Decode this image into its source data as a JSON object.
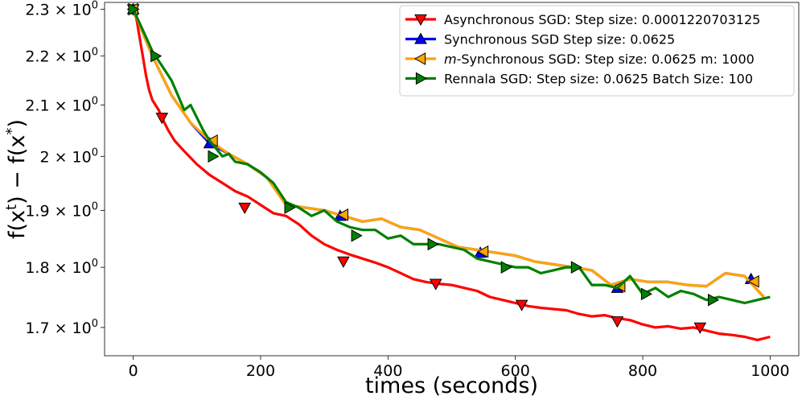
{
  "chart_data": {
    "type": "line",
    "title": "",
    "xlabel": "times (seconds)",
    "ylabel": "f(x^t) − f(x^*)",
    "yscale": "log",
    "xlim": [
      -45,
      1045
    ],
    "ylim": [
      1.655,
      2.315
    ],
    "x_ticks": [
      0,
      200,
      400,
      600,
      800,
      1000
    ],
    "y_ticks": [
      {
        "value": 1.7,
        "mantissa": "1.7"
      },
      {
        "value": 1.8,
        "mantissa": "1.8"
      },
      {
        "value": 1.9,
        "mantissa": "1.9"
      },
      {
        "value": 2.0,
        "mantissa": "2"
      },
      {
        "value": 2.1,
        "mantissa": "2.1"
      },
      {
        "value": 2.2,
        "mantissa": "2.2"
      },
      {
        "value": 2.3,
        "mantissa": "2.3"
      }
    ],
    "tick_base": "10",
    "tick_exponent": "0",
    "legend_position": "top-right",
    "series": [
      {
        "name": "Asynchronous SGD: Step size: 0.0001220703125",
        "label_parts": [
          {
            "text": "Asynchronous SGD: Step size: 0.0001220703125",
            "italic": false
          }
        ],
        "color": "#ff0000",
        "marker": "triangle-down",
        "x": [
          0,
          5,
          10,
          15,
          20,
          25,
          30,
          35,
          40,
          45,
          55,
          65,
          80,
          100,
          120,
          140,
          160,
          180,
          200,
          220,
          240,
          260,
          280,
          300,
          320,
          340,
          360,
          380,
          400,
          420,
          440,
          460,
          480,
          500,
          520,
          540,
          560,
          580,
          600,
          620,
          640,
          660,
          680,
          700,
          720,
          740,
          760,
          780,
          800,
          820,
          840,
          860,
          880,
          900,
          920,
          940,
          960,
          980,
          1000
        ],
        "values": [
          2.3,
          2.28,
          2.24,
          2.2,
          2.16,
          2.13,
          2.11,
          2.1,
          2.09,
          2.075,
          2.05,
          2.03,
          2.01,
          1.985,
          1.965,
          1.95,
          1.935,
          1.925,
          1.91,
          1.895,
          1.89,
          1.875,
          1.855,
          1.84,
          1.83,
          1.822,
          1.815,
          1.808,
          1.8,
          1.79,
          1.78,
          1.775,
          1.772,
          1.77,
          1.765,
          1.76,
          1.75,
          1.745,
          1.74,
          1.735,
          1.732,
          1.73,
          1.728,
          1.722,
          1.718,
          1.72,
          1.715,
          1.712,
          1.705,
          1.7,
          1.702,
          1.698,
          1.7,
          1.695,
          1.69,
          1.688,
          1.685,
          1.68,
          1.685
        ],
        "marker_x": [
          0,
          45,
          175,
          330,
          475,
          610,
          760,
          890
        ],
        "marker_values": [
          2.3,
          2.075,
          1.905,
          1.81,
          1.772,
          1.737,
          1.71,
          1.7
        ]
      },
      {
        "name": "Synchronous SGD Step size: 0.0625",
        "label_parts": [
          {
            "text": "Synchronous SGD Step size: 0.0625",
            "italic": false
          }
        ],
        "color": "#0000ff",
        "marker": "triangle-up",
        "x": [
          0,
          30,
          60,
          90,
          120,
          150,
          180,
          210,
          240,
          270,
          300,
          330,
          360,
          390,
          420,
          450,
          480,
          510,
          540,
          570,
          600,
          630,
          660,
          690,
          720,
          750,
          780,
          810,
          840,
          870,
          900,
          930,
          960,
          990
        ],
        "values": [
          2.3,
          2.2,
          2.12,
          2.065,
          2.025,
          2.005,
          1.985,
          1.96,
          1.91,
          1.905,
          1.9,
          1.89,
          1.88,
          1.885,
          1.87,
          1.865,
          1.85,
          1.835,
          1.83,
          1.825,
          1.82,
          1.81,
          1.805,
          1.8,
          1.795,
          1.77,
          1.78,
          1.775,
          1.775,
          1.77,
          1.768,
          1.79,
          1.785,
          1.75
        ],
        "marker_x": [
          0,
          120,
          325,
          545,
          760,
          970
        ],
        "marker_values": [
          2.3,
          2.025,
          1.89,
          1.825,
          1.765,
          1.78
        ]
      },
      {
        "name": "m-Synchronous SGD: Step size: 0.0625 m: 1000",
        "label_parts": [
          {
            "text": "m",
            "italic": true
          },
          {
            "text": "-Synchronous  SGD: Step size: 0.0625 m: 1000",
            "italic": false
          }
        ],
        "color": "#ffa500",
        "marker": "triangle-left",
        "x": [
          0,
          30,
          60,
          90,
          120,
          150,
          180,
          210,
          240,
          270,
          300,
          330,
          360,
          390,
          420,
          450,
          480,
          510,
          540,
          570,
          600,
          630,
          660,
          690,
          720,
          750,
          780,
          810,
          840,
          870,
          900,
          930,
          960,
          990
        ],
        "values": [
          2.3,
          2.2,
          2.12,
          2.065,
          2.03,
          2.005,
          1.985,
          1.96,
          1.91,
          1.905,
          1.9,
          1.89,
          1.88,
          1.885,
          1.87,
          1.865,
          1.85,
          1.835,
          1.83,
          1.825,
          1.82,
          1.81,
          1.805,
          1.8,
          1.795,
          1.77,
          1.78,
          1.775,
          1.775,
          1.77,
          1.768,
          1.79,
          1.785,
          1.75
        ],
        "marker_x": [
          0,
          125,
          330,
          550,
          765,
          975
        ],
        "marker_values": [
          2.3,
          2.03,
          1.892,
          1.827,
          1.768,
          1.776
        ]
      },
      {
        "name": "Rennala SGD: Step size: 0.0625 Batch Size: 100",
        "label_parts": [
          {
            "text": "Rennala SGD: Step size: 0.0625 Batch Size: 100",
            "italic": false
          }
        ],
        "color": "#008000",
        "marker": "triangle-right",
        "x": [
          0,
          10,
          20,
          30,
          40,
          50,
          60,
          70,
          80,
          90,
          100,
          110,
          120,
          130,
          140,
          150,
          160,
          180,
          200,
          220,
          240,
          260,
          280,
          300,
          320,
          340,
          360,
          380,
          400,
          420,
          440,
          460,
          480,
          500,
          520,
          540,
          560,
          580,
          600,
          620,
          640,
          660,
          680,
          700,
          720,
          740,
          760,
          780,
          800,
          820,
          840,
          860,
          880,
          900,
          920,
          940,
          960,
          980,
          1000
        ],
        "values": [
          2.3,
          2.27,
          2.24,
          2.21,
          2.19,
          2.17,
          2.15,
          2.12,
          2.09,
          2.1,
          2.075,
          2.05,
          2.03,
          2.015,
          2.0,
          2.005,
          1.99,
          1.985,
          1.97,
          1.95,
          1.915,
          1.905,
          1.89,
          1.9,
          1.88,
          1.87,
          1.865,
          1.865,
          1.85,
          1.855,
          1.84,
          1.84,
          1.84,
          1.835,
          1.83,
          1.815,
          1.81,
          1.805,
          1.8,
          1.8,
          1.79,
          1.795,
          1.8,
          1.8,
          1.77,
          1.77,
          1.765,
          1.785,
          1.755,
          1.765,
          1.75,
          1.76,
          1.755,
          1.745,
          1.75,
          1.745,
          1.74,
          1.745,
          1.75
        ],
        "marker_x": [
          0,
          35,
          125,
          245,
          350,
          470,
          585,
          695,
          805,
          910
        ],
        "marker_values": [
          2.3,
          2.2,
          2.0,
          1.905,
          1.855,
          1.84,
          1.8,
          1.8,
          1.755,
          1.745
        ]
      }
    ]
  }
}
